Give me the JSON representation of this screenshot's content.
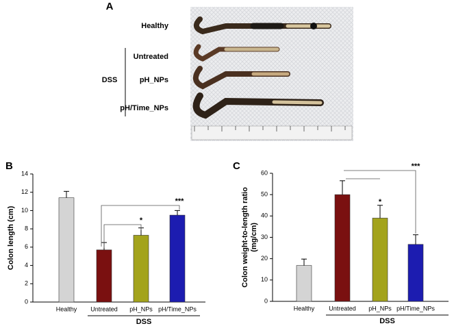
{
  "photo_panel": {
    "panel_letter": "A",
    "labels": [
      "Healthy",
      "Untreated",
      "pH_NPs",
      "pH/Time_NPs"
    ],
    "group_label": "DSS"
  },
  "chart_data": [
    {
      "type": "bar",
      "panel_letter": "B",
      "ylabel": [
        "Colon length (cm)"
      ],
      "categories": [
        "Healthy",
        "Untreated",
        "pH_NPs",
        "pH/Time_NPs"
      ],
      "values": [
        11.4,
        5.7,
        7.3,
        9.5
      ],
      "errors": [
        0.7,
        0.8,
        0.8,
        0.5
      ],
      "colors": [
        "#d4d4d4",
        "#7a1010",
        "#a3a31c",
        "#1c1cb0"
      ],
      "ylim": [
        0,
        14
      ],
      "yticks": [
        0,
        2,
        4,
        6,
        8,
        10,
        12,
        14
      ],
      "group_label": "DSS",
      "annotations": [
        "***",
        "*"
      ]
    },
    {
      "type": "bar",
      "panel_letter": "C",
      "ylabel": [
        "Colon weight-to-length ratio",
        "(mg/cm)"
      ],
      "categories": [
        "Healthy",
        "Untreated",
        "pH_NPs",
        "pH/Time_NPs"
      ],
      "values": [
        16.8,
        50,
        39,
        26.7
      ],
      "errors": [
        3,
        6.5,
        6,
        4.5
      ],
      "colors": [
        "#d4d4d4",
        "#7a1010",
        "#a3a31c",
        "#1c1cb0"
      ],
      "ylim": [
        0,
        60
      ],
      "yticks": [
        0,
        10,
        20,
        30,
        40,
        50,
        60
      ],
      "group_label": "DSS",
      "annotations": [
        "***",
        "*"
      ]
    }
  ]
}
